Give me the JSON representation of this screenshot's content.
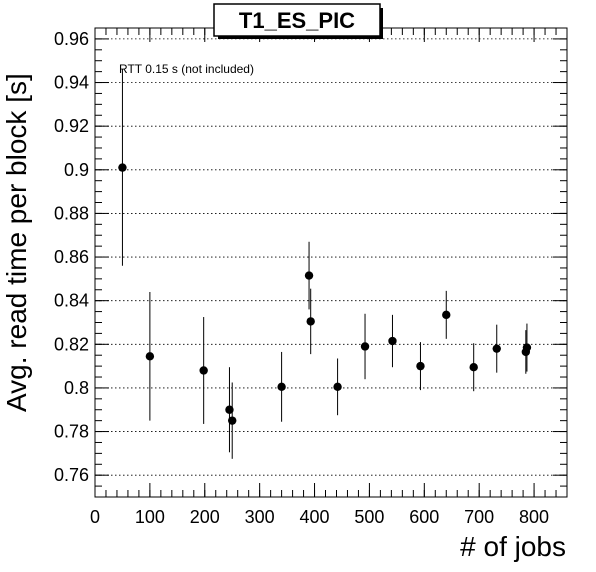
{
  "chart_data": {
    "type": "scatter",
    "title": "T1_ES_PIC",
    "xlabel": "# of jobs",
    "ylabel": "Avg. read time per block [s]",
    "annotation": "RTT 0.15 s (not included)",
    "xlim": [
      0,
      860
    ],
    "ylim": [
      0.75,
      0.965
    ],
    "xticks": [
      0,
      100,
      200,
      300,
      400,
      500,
      600,
      700,
      800
    ],
    "yticks": [
      0.76,
      0.78,
      0.8,
      0.82,
      0.84,
      0.86,
      0.88,
      0.9,
      0.92,
      0.94,
      0.96
    ],
    "ytick_labels": [
      "0.76",
      "0.78",
      "0.8",
      "0.82",
      "0.84",
      "0.86",
      "0.88",
      "0.9",
      "0.92",
      "0.94",
      "0.96"
    ],
    "grid": {
      "x": false,
      "y": true
    },
    "marker_color": "#000000",
    "points": [
      {
        "x": 50,
        "y": 0.901,
        "err": 0.045
      },
      {
        "x": 100,
        "y": 0.8145,
        "err": 0.0295
      },
      {
        "x": 198,
        "y": 0.808,
        "err": 0.0245
      },
      {
        "x": 245,
        "y": 0.79,
        "err": 0.0195
      },
      {
        "x": 250,
        "y": 0.785,
        "err": 0.0175
      },
      {
        "x": 340,
        "y": 0.8005,
        "err": 0.016
      },
      {
        "x": 390,
        "y": 0.8515,
        "err": 0.0155
      },
      {
        "x": 393,
        "y": 0.8305,
        "err": 0.015
      },
      {
        "x": 442,
        "y": 0.8005,
        "err": 0.013
      },
      {
        "x": 492,
        "y": 0.819,
        "err": 0.015
      },
      {
        "x": 542,
        "y": 0.8215,
        "err": 0.012
      },
      {
        "x": 593,
        "y": 0.81,
        "err": 0.011
      },
      {
        "x": 640,
        "y": 0.8335,
        "err": 0.011
      },
      {
        "x": 690,
        "y": 0.8095,
        "err": 0.011
      },
      {
        "x": 732,
        "y": 0.818,
        "err": 0.011
      },
      {
        "x": 785,
        "y": 0.8165,
        "err": 0.01
      },
      {
        "x": 787,
        "y": 0.8185,
        "err": 0.011
      }
    ]
  }
}
